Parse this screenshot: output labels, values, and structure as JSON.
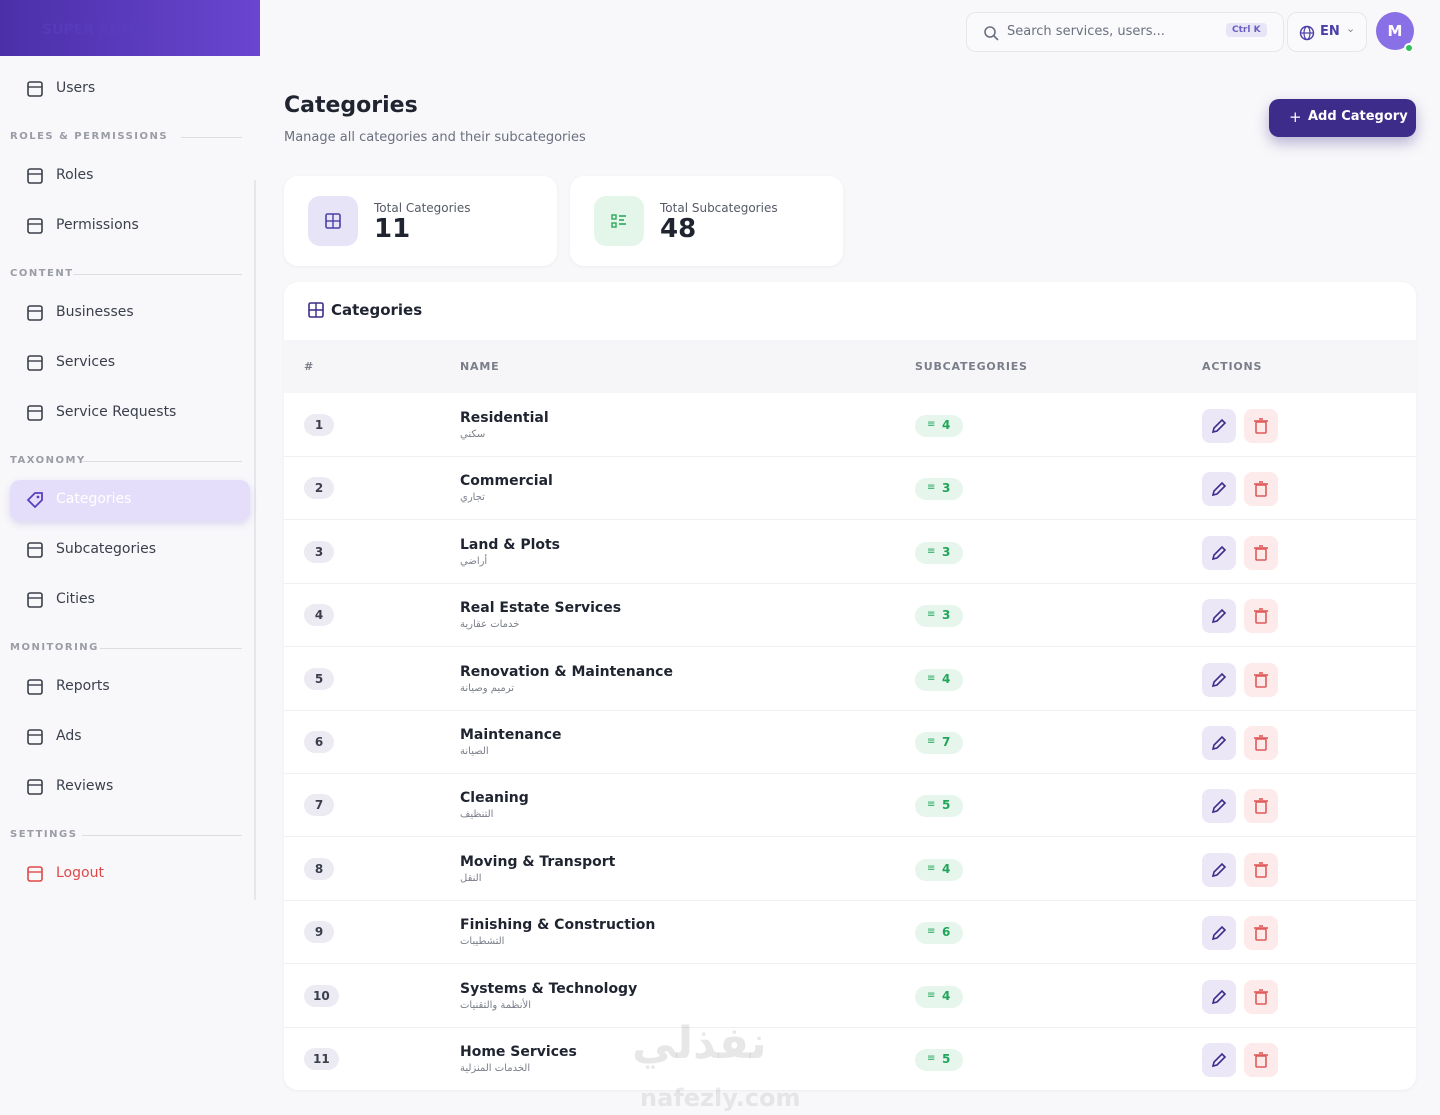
{
  "sidebar": {
    "brand": "SUPER ADMIN",
    "top_items": [
      {
        "label": "Users"
      }
    ],
    "sections": [
      {
        "label": "ROLES & PERMISSIONS",
        "items": [
          {
            "label": "Roles"
          },
          {
            "label": "Permissions"
          }
        ]
      },
      {
        "label": "CONTENT",
        "items": [
          {
            "label": "Businesses"
          },
          {
            "label": "Services"
          },
          {
            "label": "Service Requests"
          }
        ]
      },
      {
        "label": "TAXONOMY",
        "items": [
          {
            "label": "Categories",
            "state": "active"
          },
          {
            "label": "Subcategories"
          },
          {
            "label": "Cities"
          }
        ]
      },
      {
        "label": "MONITORING",
        "items": [
          {
            "label": "Reports"
          },
          {
            "label": "Ads"
          },
          {
            "label": "Reviews"
          }
        ]
      },
      {
        "label": "SETTINGS",
        "items": [
          {
            "label": "Logout",
            "tone": "danger"
          }
        ]
      }
    ]
  },
  "topbar": {
    "search_placeholder": "Search services, users...",
    "shortcut": "Ctrl K",
    "language": "EN",
    "avatar": "M"
  },
  "header": {
    "title": "Categories",
    "subtitle": "Manage all categories and their subcategories",
    "button": "Add Category"
  },
  "stats": [
    {
      "label": "Total Categories",
      "value": 11
    },
    {
      "label": "Total Subcategories",
      "value": 48
    }
  ],
  "table": {
    "title": "Categories",
    "columns": [
      "#",
      "NAME",
      "SUBCATEGORIES",
      "ACTIONS"
    ],
    "rows": [
      {
        "index": 1,
        "name": "Residential",
        "name_ar": "سكني",
        "subcategories": 4
      },
      {
        "index": 2,
        "name": "Commercial",
        "name_ar": "تجاري",
        "subcategories": 3
      },
      {
        "index": 3,
        "name": "Land & Plots",
        "name_ar": "أراضي",
        "subcategories": 3
      },
      {
        "index": 4,
        "name": "Real Estate Services",
        "name_ar": "خدمات عقارية",
        "subcategories": 3
      },
      {
        "index": 5,
        "name": "Renovation & Maintenance",
        "name_ar": "ترميم وصيانة",
        "subcategories": 4
      },
      {
        "index": 6,
        "name": "Maintenance",
        "name_ar": "الصيانة",
        "subcategories": 7
      },
      {
        "index": 7,
        "name": "Cleaning",
        "name_ar": "التنظيف",
        "subcategories": 5
      },
      {
        "index": 8,
        "name": "Moving & Transport",
        "name_ar": "النقل",
        "subcategories": 4
      },
      {
        "index": 9,
        "name": "Finishing & Construction",
        "name_ar": "التشطيبات",
        "subcategories": 6
      },
      {
        "index": 10,
        "name": "Systems & Technology",
        "name_ar": "الأنظمة والتقنيات",
        "subcategories": 4
      },
      {
        "index": 11,
        "name": "Home Services",
        "name_ar": "الخدمات المنزلية",
        "subcategories": 5
      }
    ]
  },
  "watermark": {
    "arabic": "نفذلي",
    "latin": "nafezly.com"
  }
}
